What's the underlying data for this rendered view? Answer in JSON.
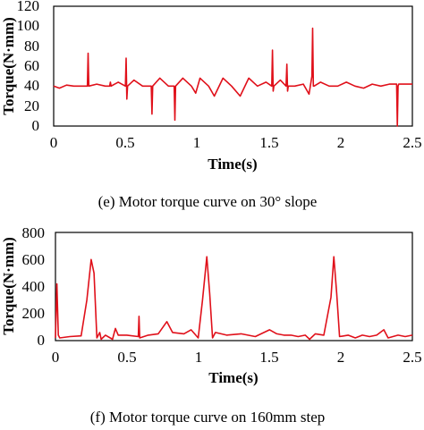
{
  "chart_data": [
    {
      "type": "line",
      "caption": "(e) Motor torque curve on 30° slope",
      "xlabel": "Time(s)",
      "ylabel": "Torque(N·mm)",
      "xlim": [
        0,
        2.5
      ],
      "ylim": [
        0,
        120
      ],
      "xticks": [
        "0",
        "0.5",
        "1",
        "1.5",
        "2",
        "2.5"
      ],
      "yticks": [
        "0",
        "20",
        "40",
        "60",
        "80",
        "100",
        "120"
      ],
      "grid": false,
      "color": "#e0101a",
      "series": [
        {
          "x": [
            0,
            0.04,
            0.09,
            0.14,
            0.19,
            0.235,
            0.24,
            0.245,
            0.3,
            0.36,
            0.39,
            0.395,
            0.4,
            0.45,
            0.5,
            0.505,
            0.51,
            0.515,
            0.56,
            0.62,
            0.68,
            0.685,
            0.69,
            0.74,
            0.8,
            0.84,
            0.845,
            0.85,
            0.9,
            0.96,
            0.99,
            1.02,
            1.08,
            1.12,
            1.18,
            1.24,
            1.3,
            1.36,
            1.42,
            1.48,
            1.52,
            1.525,
            1.53,
            1.535,
            1.58,
            1.62,
            1.625,
            1.63,
            1.635,
            1.68,
            1.74,
            1.78,
            1.8,
            1.805,
            1.81,
            1.815,
            1.86,
            1.92,
            1.98,
            2.04,
            2.1,
            2.16,
            2.22,
            2.28,
            2.34,
            2.39,
            2.395,
            2.4,
            2.405,
            2.44,
            2.5
          ],
          "y": [
            40,
            38,
            41,
            40,
            40,
            40,
            73,
            40,
            42,
            40,
            40,
            44,
            40,
            44,
            40,
            68,
            27,
            40,
            46,
            40,
            40,
            12,
            40,
            48,
            40,
            40,
            6,
            40,
            48,
            40,
            33,
            48,
            40,
            30,
            48,
            40,
            30,
            48,
            40,
            44,
            40,
            76,
            35,
            40,
            46,
            40,
            62,
            35,
            40,
            40,
            42,
            32,
            50,
            98,
            40,
            40,
            44,
            40,
            40,
            44,
            40,
            38,
            42,
            40,
            42,
            42,
            0,
            40,
            42,
            42,
            42
          ]
        }
      ]
    },
    {
      "type": "line",
      "caption": "(f) Motor torque curve on 160mm step",
      "xlabel": "Time(s)",
      "ylabel": "Torque(N·mm)",
      "xlim": [
        0,
        2.5
      ],
      "ylim": [
        0,
        800
      ],
      "xticks": [
        "0",
        "0.5",
        "1",
        "1.5",
        "2",
        "2.5"
      ],
      "yticks": [
        "0",
        "200",
        "400",
        "600",
        "800"
      ],
      "grid": false,
      "color": "#e0101a",
      "series": [
        {
          "x": [
            0,
            0.01,
            0.02,
            0.03,
            0.1,
            0.18,
            0.22,
            0.25,
            0.27,
            0.29,
            0.31,
            0.32,
            0.35,
            0.4,
            0.42,
            0.44,
            0.5,
            0.58,
            0.585,
            0.59,
            0.65,
            0.72,
            0.78,
            0.82,
            0.9,
            0.95,
            1.0,
            1.03,
            1.06,
            1.08,
            1.1,
            1.12,
            1.2,
            1.3,
            1.4,
            1.5,
            1.55,
            1.6,
            1.65,
            1.7,
            1.75,
            1.78,
            1.82,
            1.88,
            1.93,
            1.95,
            1.97,
            1.99,
            2.05,
            2.1,
            2.15,
            2.2,
            2.25,
            2.3,
            2.33,
            2.4,
            2.45,
            2.5
          ],
          "y": [
            20,
            420,
            40,
            20,
            30,
            35,
            300,
            600,
            500,
            20,
            60,
            10,
            40,
            10,
            90,
            40,
            40,
            30,
            180,
            20,
            40,
            50,
            140,
            60,
            50,
            80,
            20,
            300,
            620,
            350,
            20,
            60,
            40,
            50,
            30,
            80,
            50,
            40,
            40,
            30,
            40,
            10,
            50,
            40,
            320,
            620,
            350,
            30,
            40,
            20,
            40,
            30,
            40,
            80,
            20,
            40,
            30,
            40
          ]
        }
      ]
    }
  ]
}
